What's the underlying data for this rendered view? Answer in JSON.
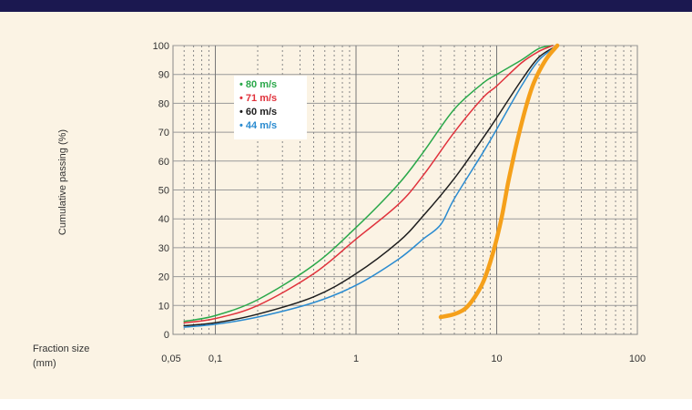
{
  "chart_data": {
    "type": "line",
    "ylabel": "Cumulative passing (%)",
    "xlabel_lines": [
      "Fraction size",
      "(mm)"
    ],
    "x_scale": "log",
    "xlim": [
      0.05,
      100
    ],
    "ylim": [
      0,
      100
    ],
    "x_ticks": [
      {
        "value": 0.05,
        "label": "0,05"
      },
      {
        "value": 0.1,
        "label": "0,1"
      },
      {
        "value": 1,
        "label": "1"
      },
      {
        "value": 10,
        "label": "10"
      },
      {
        "value": 100,
        "label": "100"
      }
    ],
    "y_ticks": [
      {
        "value": 0,
        "label": "0"
      },
      {
        "value": 10,
        "label": "10"
      },
      {
        "value": 20,
        "label": "20"
      },
      {
        "value": 30,
        "label": "30"
      },
      {
        "value": 40,
        "label": "40"
      },
      {
        "value": 50,
        "label": "50"
      },
      {
        "value": 60,
        "label": "60"
      },
      {
        "value": 70,
        "label": "70"
      },
      {
        "value": 80,
        "label": "80"
      },
      {
        "value": 90,
        "label": "90"
      },
      {
        "value": 100,
        "label": "100"
      }
    ],
    "grid": true,
    "legend_position": "top-left",
    "series": [
      {
        "name": "80 m/s",
        "color": "#2aa84a",
        "points": [
          [
            0.06,
            4.5
          ],
          [
            0.1,
            6.5
          ],
          [
            0.2,
            12
          ],
          [
            0.5,
            24
          ],
          [
            1,
            37
          ],
          [
            2,
            52
          ],
          [
            3,
            63
          ],
          [
            5,
            78
          ],
          [
            8,
            87
          ],
          [
            10,
            90
          ],
          [
            15,
            95
          ],
          [
            20,
            99
          ],
          [
            25,
            100
          ]
        ]
      },
      {
        "name": "71 m/s",
        "color": "#e0323c",
        "points": [
          [
            0.06,
            4
          ],
          [
            0.1,
            5.5
          ],
          [
            0.2,
            10
          ],
          [
            0.5,
            21
          ],
          [
            1,
            33
          ],
          [
            2,
            45
          ],
          [
            3,
            55
          ],
          [
            5,
            70
          ],
          [
            8,
            82
          ],
          [
            10,
            86
          ],
          [
            15,
            94
          ],
          [
            20,
            98
          ],
          [
            25,
            100
          ]
        ]
      },
      {
        "name": "60 m/s",
        "color": "#1e1e1e",
        "points": [
          [
            0.06,
            3
          ],
          [
            0.1,
            4
          ],
          [
            0.2,
            7
          ],
          [
            0.5,
            13
          ],
          [
            1,
            21
          ],
          [
            2,
            32
          ],
          [
            3,
            41
          ],
          [
            5,
            54
          ],
          [
            8,
            68
          ],
          [
            10,
            75
          ],
          [
            15,
            88
          ],
          [
            20,
            96
          ],
          [
            27,
            100
          ]
        ]
      },
      {
        "name": "44 m/s",
        "color": "#2a8bd0",
        "points": [
          [
            0.06,
            2.5
          ],
          [
            0.1,
            3.5
          ],
          [
            0.2,
            6
          ],
          [
            0.5,
            11
          ],
          [
            1,
            17
          ],
          [
            2,
            26
          ],
          [
            3,
            33
          ],
          [
            4,
            38
          ],
          [
            5,
            47
          ],
          [
            8,
            63
          ],
          [
            10,
            71
          ],
          [
            15,
            86
          ],
          [
            20,
            95
          ],
          [
            27,
            100
          ]
        ]
      },
      {
        "color": "#f5a01a",
        "bold": true,
        "points": [
          [
            4,
            6
          ],
          [
            5,
            7
          ],
          [
            6,
            9
          ],
          [
            7,
            13
          ],
          [
            8,
            18
          ],
          [
            9,
            25
          ],
          [
            10,
            33
          ],
          [
            11,
            42
          ],
          [
            12,
            52
          ],
          [
            13,
            60
          ],
          [
            14,
            67
          ],
          [
            16,
            78
          ],
          [
            18,
            86
          ],
          [
            20,
            91
          ],
          [
            23,
            96
          ],
          [
            27,
            100
          ]
        ]
      }
    ]
  }
}
